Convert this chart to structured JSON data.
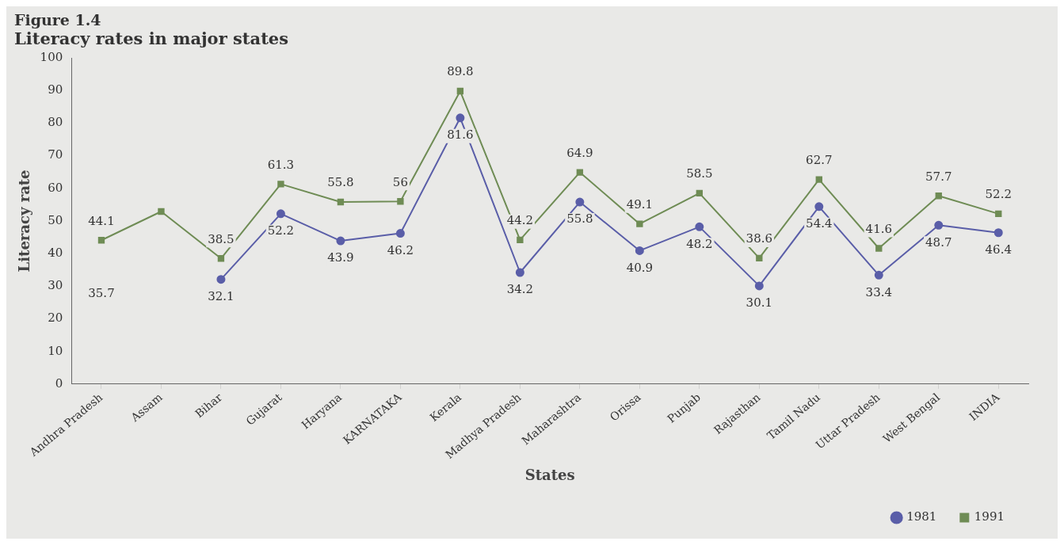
{
  "chart_data": {
    "type": "line",
    "title": "Figure 1.4",
    "subtitle": "Literacy rates in major states",
    "xlabel": "States",
    "ylabel": "Literacy rate",
    "categories": [
      "Andhra Pradesh",
      "Assam",
      "Bihar",
      "Gujarat",
      "Haryana",
      "KARNATAKA",
      "Kerala",
      "Madhya Pradesh",
      "Maharashtra",
      "Orissa",
      "Punjab",
      "Rajasthan",
      "Tamil Nadu",
      "Uttar Pradesh",
      "West Bengal",
      "INDIA"
    ],
    "series": [
      {
        "name": "1981",
        "color": "#5a5ea8",
        "marker": "circle",
        "values": [
          null,
          null,
          32.1,
          52.2,
          43.9,
          46.2,
          81.6,
          34.2,
          55.8,
          40.9,
          48.2,
          30.1,
          54.4,
          33.4,
          48.7,
          46.4
        ],
        "value_labels": [
          null,
          null,
          "32.1",
          "52.2",
          "43.9",
          "46.2",
          "81.6",
          "34.2",
          "55.8",
          "40.9",
          "48.2",
          "30.1",
          "54.4",
          "33.4",
          "48.7",
          "46.4"
        ]
      },
      {
        "name": "1991",
        "color": "#6f8c55",
        "marker": "square",
        "values": [
          44.1,
          52.9,
          38.5,
          61.3,
          55.8,
          56,
          89.8,
          44.2,
          64.9,
          49.1,
          58.5,
          38.6,
          62.7,
          41.6,
          57.7,
          52.2
        ],
        "value_labels": [
          "44.1",
          null,
          "38.5",
          "61.3",
          "55.8",
          "56",
          "89.8",
          "44.2",
          "64.9",
          "49.1",
          "58.5",
          "38.6",
          "62.7",
          "41.6",
          "57.7",
          "52.2"
        ]
      }
    ],
    "annotations": [
      "35.7"
    ],
    "ylim": [
      0,
      100
    ],
    "yticks": [
      0,
      10,
      20,
      30,
      40,
      50,
      60,
      70,
      80,
      90,
      100
    ],
    "grid": false,
    "legend": "bottom right"
  }
}
